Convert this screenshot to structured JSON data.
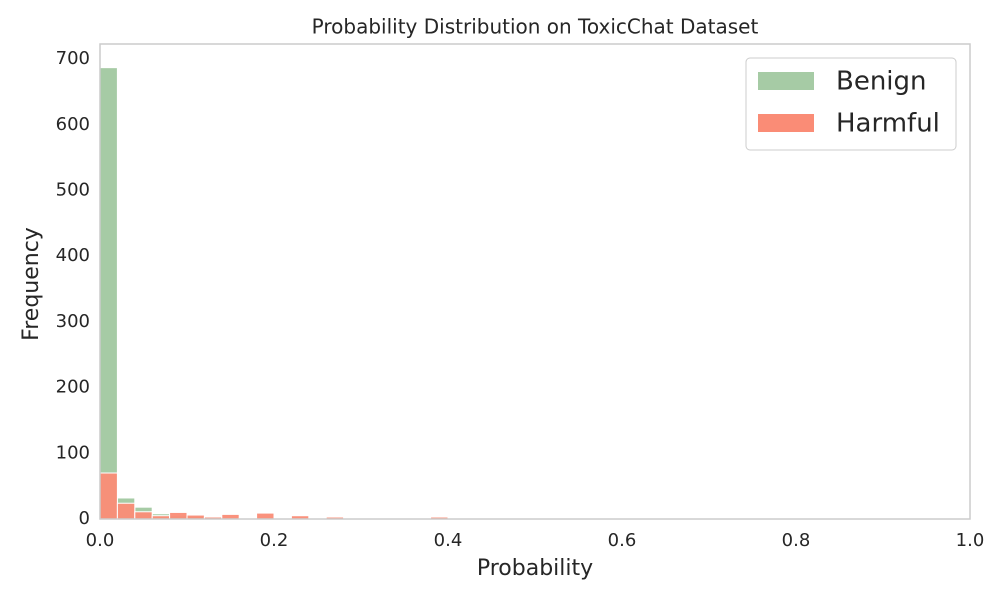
{
  "chart_data": {
    "type": "histogram",
    "title": "Probability Distribution on ToxicChat Dataset",
    "x_label": "Probability",
    "y_label": "Frequency",
    "bins": [
      0,
      0.02,
      0.04,
      0.06,
      0.08,
      0.1,
      0.12,
      0.14,
      0.16,
      0.18,
      0.2,
      0.22,
      0.24,
      0.26,
      0.28,
      0.3,
      0.32,
      0.34,
      0.36,
      0.38,
      0.4,
      0.42,
      0.44,
      0.46,
      0.48,
      0.5,
      0.52,
      0.54,
      0.56,
      0.58,
      0.6,
      0.62,
      0.64,
      0.66,
      0.68,
      0.7,
      0.72,
      0.74,
      0.76,
      0.78,
      0.8,
      0.82,
      0.84,
      0.86,
      0.88,
      0.9,
      0.92,
      0.94,
      0.96,
      0.98,
      1
    ],
    "series": [
      {
        "name": "Benign",
        "color": "#a6cba5",
        "values": [
          687,
          32,
          18,
          8,
          5,
          4,
          3,
          2,
          2,
          2,
          1,
          1,
          1,
          1,
          1,
          1,
          1,
          1,
          1,
          1,
          0,
          0,
          0,
          0,
          0,
          0,
          0,
          0,
          0,
          0,
          0,
          0,
          0,
          0,
          0,
          0,
          0,
          0,
          0,
          0,
          0,
          0,
          0,
          0,
          1,
          1,
          1,
          0,
          0,
          0
        ]
      },
      {
        "name": "Harmful",
        "color": "#fa8c76",
        "values": [
          70,
          24,
          11,
          5,
          10,
          6,
          3,
          7,
          1,
          9,
          0,
          5,
          0,
          3,
          0,
          0,
          0,
          0,
          0,
          3,
          0,
          0,
          0,
          0,
          0,
          0,
          0,
          0,
          0,
          0,
          0,
          0,
          0,
          0,
          0,
          0,
          0,
          0,
          0,
          0,
          0,
          0,
          0,
          0,
          0,
          0,
          0,
          0,
          0,
          0
        ]
      }
    ],
    "xlim": [
      0,
      1
    ],
    "ylim": [
      0,
      723
    ],
    "xticks": [
      {
        "value": 0,
        "label": "0.0"
      },
      0.2,
      0.4,
      0.6,
      0.8,
      {
        "value": 1,
        "label": "1.0"
      }
    ],
    "yticks": [
      0,
      100,
      200,
      300,
      400,
      500,
      600,
      700
    ],
    "grid": false,
    "legend": "upper right"
  }
}
